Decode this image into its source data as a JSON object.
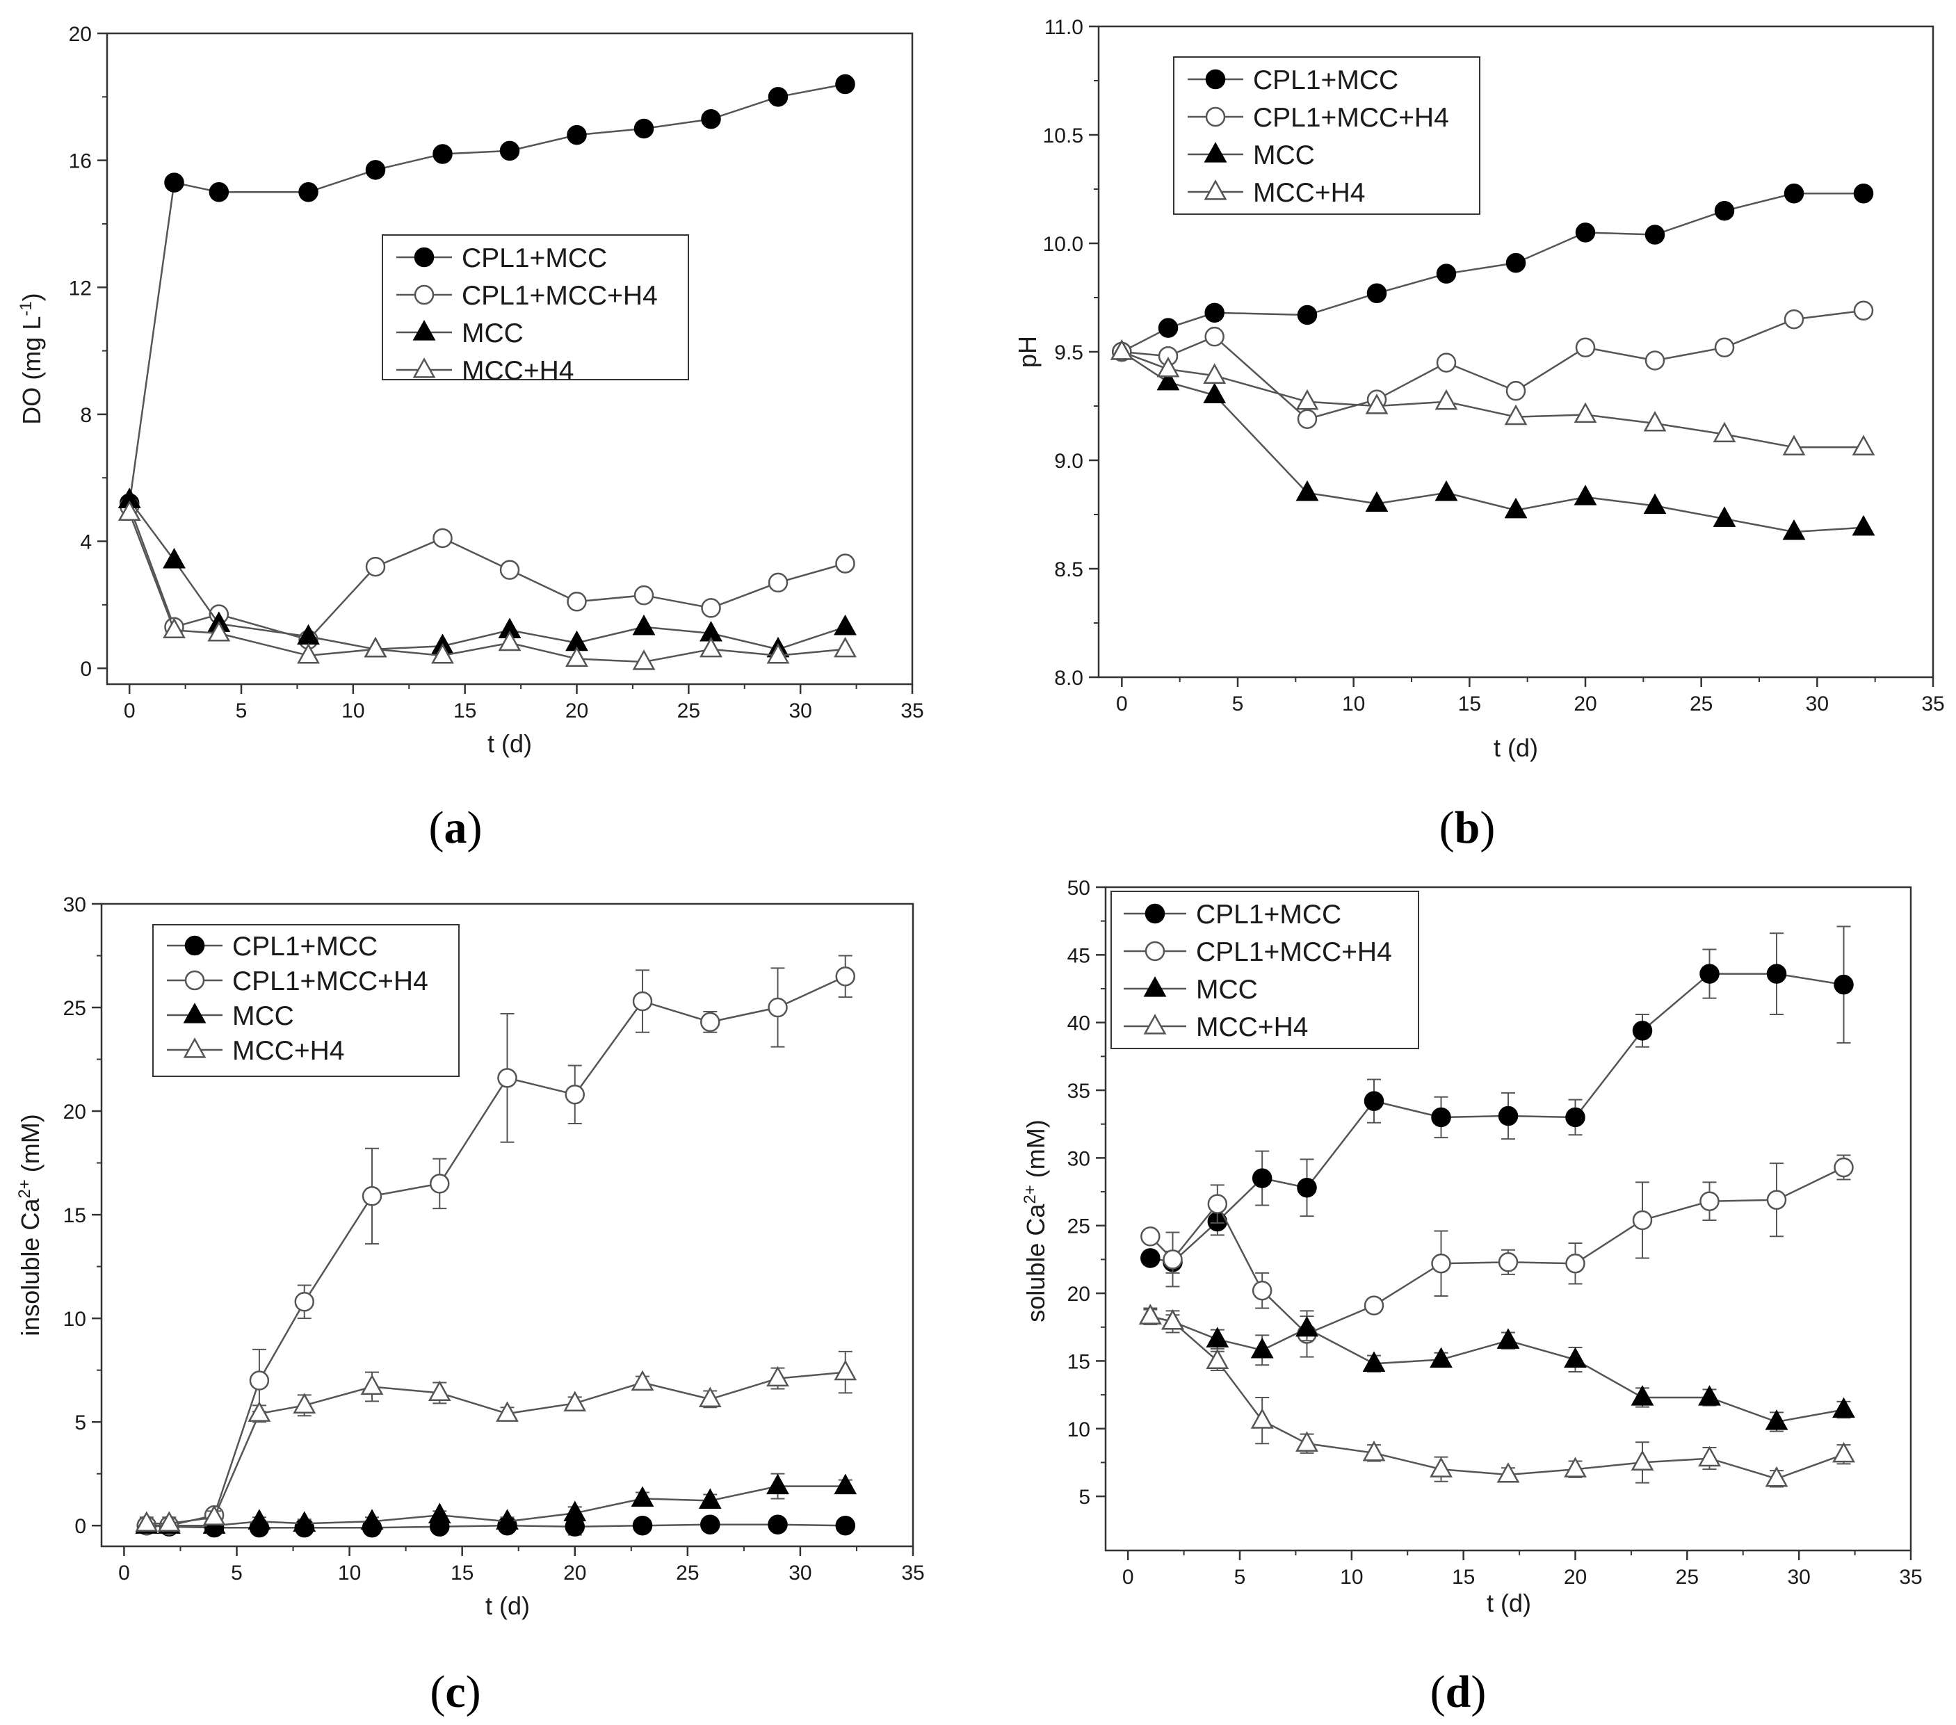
{
  "figure": {
    "panel_labels": [
      {
        "open": "(",
        "letter": "a",
        "close": ")"
      },
      {
        "open": "(",
        "letter": "b",
        "close": ")"
      },
      {
        "open": "(",
        "letter": "c",
        "close": ")"
      },
      {
        "open": "(",
        "letter": "d",
        "close": ")"
      }
    ]
  },
  "series_styles": [
    {
      "name": "CPL1+MCC",
      "marker": "circle",
      "filled": true
    },
    {
      "name": "CPL1+MCC+H4",
      "marker": "circle",
      "filled": false
    },
    {
      "name": "MCC",
      "marker": "triangle",
      "filled": true
    },
    {
      "name": "MCC+H4",
      "marker": "triangle",
      "filled": false
    }
  ],
  "colors": {
    "line": "#555555",
    "filled_marker": "#000000",
    "open_marker_stroke": "#555555",
    "open_marker_fill": "#ffffff",
    "axis": "#333333"
  },
  "chart_data": [
    {
      "id": "a",
      "type": "line",
      "xlabel": "t (d)",
      "ylabel": "DO (mg L",
      "ylabel_sup": "-1",
      "ylabel_close": ")",
      "xlim": [
        -1,
        35
      ],
      "ylim": [
        -0.5,
        20
      ],
      "xticks": [
        0,
        5,
        10,
        15,
        20,
        25,
        30,
        35
      ],
      "yticks": [
        0,
        4,
        8,
        12,
        16,
        20
      ],
      "ytick_labels": [
        "0",
        "4",
        "8",
        "12",
        "16",
        "20"
      ],
      "legend_position": "center-right",
      "series": [
        {
          "name": "CPL1+MCC",
          "x": [
            0,
            2,
            4,
            8,
            11,
            14,
            17,
            20,
            23,
            26,
            29,
            32
          ],
          "values": [
            5.2,
            15.3,
            15.0,
            15.0,
            15.7,
            16.2,
            16.3,
            16.8,
            17.0,
            17.3,
            18.0,
            18.4
          ]
        },
        {
          "name": "CPL1+MCC+H4",
          "x": [
            0,
            2,
            4,
            8,
            11,
            14,
            17,
            20,
            23,
            26,
            29,
            32
          ],
          "values": [
            5.1,
            1.3,
            1.7,
            0.9,
            3.2,
            4.1,
            3.1,
            2.1,
            2.3,
            1.9,
            2.7,
            3.3
          ]
        },
        {
          "name": "MCC",
          "x": [
            0,
            2,
            4,
            8,
            11,
            14,
            17,
            20,
            23,
            26,
            29,
            32
          ],
          "values": [
            5.3,
            3.4,
            1.4,
            1.0,
            0.6,
            0.7,
            1.2,
            0.8,
            1.3,
            1.1,
            0.6,
            1.3
          ]
        },
        {
          "name": "MCC+H4",
          "x": [
            0,
            2,
            4,
            8,
            11,
            14,
            17,
            20,
            23,
            26,
            29,
            32
          ],
          "values": [
            4.9,
            1.2,
            1.1,
            0.4,
            0.6,
            0.4,
            0.8,
            0.3,
            0.2,
            0.6,
            0.4,
            0.6
          ]
        }
      ]
    },
    {
      "id": "b",
      "type": "line",
      "xlabel": "t (d)",
      "ylabel": "pH",
      "xlim": [
        -1,
        35
      ],
      "ylim": [
        8.0,
        11.0
      ],
      "xticks": [
        0,
        5,
        10,
        15,
        20,
        25,
        30,
        35
      ],
      "yticks": [
        8.0,
        8.5,
        9.0,
        9.5,
        10.0,
        10.5,
        11.0
      ],
      "ytick_labels": [
        "8.0",
        "8.5",
        "9.0",
        "9.5",
        "10.0",
        "10.5",
        "11.0"
      ],
      "legend_position": "top-left",
      "series": [
        {
          "name": "CPL1+MCC",
          "x": [
            0,
            2,
            4,
            8,
            11,
            14,
            17,
            20,
            23,
            26,
            29,
            32
          ],
          "values": [
            9.5,
            9.61,
            9.68,
            9.67,
            9.77,
            9.86,
            9.91,
            10.05,
            10.04,
            10.15,
            10.23,
            10.23
          ]
        },
        {
          "name": "CPL1+MCC+H4",
          "x": [
            0,
            2,
            4,
            8,
            11,
            14,
            17,
            20,
            23,
            26,
            29,
            32
          ],
          "values": [
            9.5,
            9.48,
            9.57,
            9.19,
            9.28,
            9.45,
            9.32,
            9.52,
            9.46,
            9.52,
            9.65,
            9.69
          ]
        },
        {
          "name": "MCC",
          "x": [
            0,
            2,
            4,
            8,
            11,
            14,
            17,
            20,
            23,
            26,
            29,
            32
          ],
          "values": [
            9.5,
            9.36,
            9.3,
            8.85,
            8.8,
            8.85,
            8.77,
            8.83,
            8.79,
            8.73,
            8.67,
            8.69
          ]
        },
        {
          "name": "MCC+H4",
          "x": [
            0,
            2,
            4,
            8,
            11,
            14,
            17,
            20,
            23,
            26,
            29,
            32
          ],
          "values": [
            9.5,
            9.42,
            9.39,
            9.27,
            9.25,
            9.27,
            9.2,
            9.21,
            9.17,
            9.12,
            9.06,
            9.06
          ]
        }
      ]
    },
    {
      "id": "c",
      "type": "line",
      "xlabel": "t (d)",
      "ylabel": "insoluble Ca",
      "ylabel_sup": "2+",
      "ylabel_close": " (mM)",
      "xlim": [
        -1,
        35
      ],
      "ylim": [
        -1,
        30
      ],
      "xticks": [
        0,
        5,
        10,
        15,
        20,
        25,
        30,
        35
      ],
      "yticks": [
        0,
        5,
        10,
        15,
        20,
        25,
        30
      ],
      "ytick_labels": [
        "0",
        "5",
        "10",
        "15",
        "20",
        "25",
        "30"
      ],
      "legend_position": "top-left",
      "series": [
        {
          "name": "CPL1+MCC",
          "x": [
            1,
            2,
            4,
            6,
            8,
            11,
            14,
            17,
            20,
            23,
            26,
            29,
            32
          ],
          "values": [
            0.0,
            -0.05,
            -0.1,
            -0.1,
            -0.1,
            -0.1,
            -0.05,
            0.0,
            -0.05,
            0.0,
            0.05,
            0.05,
            0.0
          ],
          "errors": [
            0.1,
            0.1,
            0.1,
            0.1,
            0.1,
            0.1,
            0.1,
            0.1,
            0.4,
            0.1,
            0.1,
            0.1,
            0.1
          ]
        },
        {
          "name": "CPL1+MCC+H4",
          "x": [
            1,
            2,
            4,
            6,
            8,
            11,
            14,
            17,
            20,
            23,
            26,
            29,
            32
          ],
          "values": [
            0.0,
            0.0,
            0.5,
            7.0,
            10.8,
            15.9,
            16.5,
            21.6,
            20.8,
            25.3,
            24.3,
            25.0,
            26.5
          ],
          "errors": [
            0.3,
            0.3,
            0.3,
            1.5,
            0.8,
            2.3,
            1.2,
            3.1,
            1.4,
            1.5,
            0.5,
            1.9,
            1.0
          ]
        },
        {
          "name": "MCC",
          "x": [
            1,
            2,
            4,
            6,
            8,
            11,
            14,
            17,
            20,
            23,
            26,
            29,
            32
          ],
          "values": [
            0.0,
            0.0,
            0.0,
            0.2,
            0.1,
            0.2,
            0.5,
            0.2,
            0.6,
            1.3,
            1.2,
            1.9,
            1.9
          ],
          "errors": [
            0.1,
            0.1,
            0.1,
            0.2,
            0.2,
            0.2,
            0.2,
            0.2,
            0.3,
            0.3,
            0.3,
            0.6,
            0.3
          ]
        },
        {
          "name": "MCC+H4",
          "x": [
            1,
            2,
            4,
            6,
            8,
            11,
            14,
            17,
            20,
            23,
            26,
            29,
            32
          ],
          "values": [
            0.1,
            0.1,
            0.4,
            5.4,
            5.8,
            6.7,
            6.4,
            5.4,
            5.9,
            6.9,
            6.1,
            7.1,
            7.4
          ],
          "errors": [
            0.3,
            0.3,
            0.3,
            0.4,
            0.5,
            0.7,
            0.5,
            0.3,
            0.3,
            0.3,
            0.4,
            0.5,
            1.0
          ]
        }
      ]
    },
    {
      "id": "d",
      "type": "line",
      "xlabel": "t (d)",
      "ylabel": "soluble Ca",
      "ylabel_sup": "2+",
      "ylabel_close": " (mM)",
      "xlim": [
        -1,
        35
      ],
      "ylim": [
        1,
        50
      ],
      "xticks": [
        0,
        5,
        10,
        15,
        20,
        25,
        30,
        35
      ],
      "yticks": [
        5,
        10,
        15,
        20,
        25,
        30,
        35,
        40,
        45,
        50
      ],
      "ytick_labels": [
        "5",
        "10",
        "15",
        "20",
        "25",
        "30",
        "35",
        "40",
        "45",
        "50"
      ],
      "legend_position": "top-left",
      "series": [
        {
          "name": "CPL1+MCC",
          "x": [
            1,
            2,
            4,
            6,
            8,
            11,
            14,
            17,
            20,
            23,
            26,
            29,
            32
          ],
          "values": [
            22.6,
            22.3,
            25.3,
            28.5,
            27.8,
            34.2,
            33.0,
            33.1,
            33.0,
            39.4,
            43.6,
            43.6,
            42.8
          ],
          "errors": [
            0.5,
            0.8,
            1.0,
            2.0,
            2.1,
            1.6,
            1.5,
            1.7,
            1.3,
            1.2,
            1.8,
            3.0,
            4.3
          ]
        },
        {
          "name": "CPL1+MCC+H4",
          "x": [
            1,
            2,
            4,
            6,
            8,
            11,
            14,
            17,
            20,
            23,
            26,
            29,
            32
          ],
          "values": [
            24.2,
            22.5,
            26.6,
            20.2,
            17.0,
            19.1,
            22.2,
            22.3,
            22.2,
            25.4,
            26.8,
            26.9,
            29.3
          ],
          "errors": [
            0.4,
            2.0,
            1.4,
            1.3,
            1.7,
            0.5,
            2.4,
            0.9,
            1.5,
            2.8,
            1.4,
            2.7,
            0.9
          ]
        },
        {
          "name": "MCC",
          "x": [
            1,
            2,
            4,
            6,
            8,
            11,
            14,
            17,
            20,
            23,
            26,
            29,
            32
          ],
          "values": [
            18.3,
            17.9,
            16.6,
            15.8,
            17.4,
            14.8,
            15.1,
            16.5,
            15.1,
            12.3,
            12.3,
            10.5,
            11.4
          ],
          "errors": [
            0.6,
            0.8,
            0.7,
            1.1,
            0.9,
            0.6,
            0.5,
            0.6,
            0.9,
            0.7,
            0.6,
            0.7,
            0.6
          ]
        },
        {
          "name": "MCC+H4",
          "x": [
            1,
            2,
            4,
            6,
            8,
            11,
            14,
            17,
            20,
            23,
            26,
            29,
            32
          ],
          "values": [
            18.3,
            17.9,
            15.0,
            10.6,
            8.9,
            8.2,
            7.0,
            6.6,
            7.0,
            7.5,
            7.8,
            6.3,
            8.1
          ],
          "errors": [
            0.5,
            0.5,
            0.7,
            1.7,
            0.7,
            0.6,
            0.9,
            0.5,
            0.6,
            1.5,
            0.8,
            0.6,
            0.7
          ]
        }
      ]
    }
  ]
}
